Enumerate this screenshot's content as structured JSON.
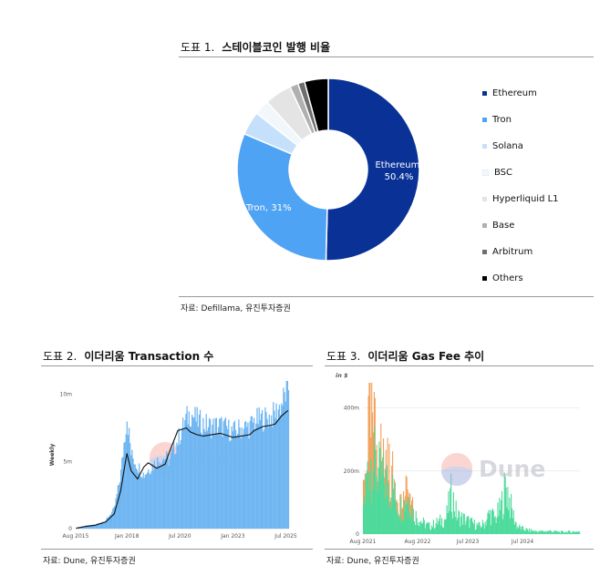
{
  "fig1": {
    "number": "도표 1.",
    "title": "스테이블코인 발행 비율",
    "source": "자료: Defillama, 유진투자증권"
  },
  "fig2": {
    "number": "도표 2.",
    "title": "이더리움 Transaction 수",
    "source": "자료: Dune, 유진투자증권",
    "watermark": "Dune"
  },
  "fig3": {
    "number": "도표 3.",
    "title": "이더리움 Gas Fee 추이",
    "source": "자료: Dune, 유진투자증권",
    "watermark": "Dune"
  },
  "colors": {
    "ethereum": "#0a3296",
    "tron": "#4fa3f5",
    "solana": "#c5e0fa",
    "bsc": "#f2f7fc",
    "hyperliquid": "#e4e4e4",
    "base": "#b0b0b0",
    "arbitrum": "#6e6e6e",
    "others": "#000000",
    "tx_bars": "#6fb6f2",
    "tx_line": "#111111",
    "gas_green": "#4ddb9c",
    "gas_orange": "#f2a25c"
  },
  "chart_data": [
    {
      "type": "pie",
      "donut": true,
      "title": "스테이블코인 발행 비율",
      "slices": [
        {
          "name": "Ethereum",
          "value": 50.4,
          "label": "Ethereum,\n50.4%",
          "color_key": "ethereum"
        },
        {
          "name": "Tron",
          "value": 31,
          "label": "Tron, 31%",
          "color_key": "tron"
        },
        {
          "name": "Solana",
          "value": 4.2,
          "color_key": "solana"
        },
        {
          "name": "BSC",
          "value": 2.7,
          "color_key": "bsc"
        },
        {
          "name": "Hyperliquid L1",
          "value": 4.8,
          "color_key": "hyperliquid"
        },
        {
          "name": "Base",
          "value": 1.5,
          "color_key": "base"
        },
        {
          "name": "Arbitrum",
          "value": 1.2,
          "color_key": "arbitrum"
        },
        {
          "name": "Others",
          "value": 4.2,
          "color_key": "others"
        }
      ],
      "legend_position": "right"
    },
    {
      "type": "bar",
      "title": "이더리움 Transaction 수",
      "ylabel": "Weekly",
      "ytick_labels": [
        "0",
        "5m",
        "10m"
      ],
      "yticks": [
        0,
        5000000,
        10000000
      ],
      "ylim": [
        0,
        11000000
      ],
      "xtick_labels": [
        "Aug 2015",
        "Jan 2018",
        "Jul 2020",
        "Jan 2023",
        "Jul 2025"
      ],
      "xticks": [
        2015.58,
        2018.0,
        2020.5,
        2023.0,
        2025.5
      ],
      "xlim": [
        2015.58,
        2025.65
      ],
      "series": [
        {
          "kind": "bar",
          "x": [
            2015.6,
            2016.0,
            2016.5,
            2017.0,
            2017.4,
            2017.7,
            2017.9,
            2018.0,
            2018.2,
            2018.5,
            2018.8,
            2019.0,
            2019.4,
            2019.8,
            2020.0,
            2020.4,
            2020.8,
            2021.0,
            2021.3,
            2021.6,
            2022.0,
            2022.4,
            2022.8,
            2023.0,
            2023.4,
            2023.8,
            2024.0,
            2024.4,
            2024.8,
            2025.0,
            2025.3,
            2025.6
          ],
          "values": [
            50000,
            200000,
            300000,
            600000,
            1500000,
            4000000,
            7000000,
            8400000,
            5500000,
            4700000,
            4000000,
            4400000,
            5000000,
            5300000,
            5100000,
            6600000,
            8200000,
            8600000,
            8100000,
            7800000,
            7600000,
            7700000,
            7400000,
            7200000,
            7500000,
            7600000,
            8000000,
            8200000,
            8300000,
            8600000,
            9300000,
            10500000
          ]
        },
        {
          "kind": "line",
          "x": [
            2015.6,
            2016.0,
            2016.5,
            2017.0,
            2017.4,
            2017.7,
            2017.9,
            2018.0,
            2018.2,
            2018.5,
            2018.8,
            2019.0,
            2019.4,
            2019.8,
            2020.0,
            2020.4,
            2020.8,
            2021.0,
            2021.3,
            2021.6,
            2022.0,
            2022.4,
            2022.8,
            2023.0,
            2023.4,
            2023.8,
            2024.0,
            2024.4,
            2024.8,
            2025.0,
            2025.3,
            2025.6
          ],
          "values": [
            30000,
            150000,
            250000,
            500000,
            1100000,
            2800000,
            4700000,
            5600000,
            4300000,
            3700000,
            4600000,
            4900000,
            4500000,
            4800000,
            5700000,
            7300000,
            7500000,
            7200000,
            7000000,
            6900000,
            7000000,
            7100000,
            6900000,
            6800000,
            6900000,
            7000000,
            7300000,
            7600000,
            7700000,
            7800000,
            8400000,
            8800000
          ]
        }
      ]
    },
    {
      "type": "area",
      "title": "이더리움 Gas Fee 추이",
      "unit_label": "in $",
      "ytick_labels": [
        "0",
        "200m",
        "400m"
      ],
      "yticks": [
        0,
        200000000,
        400000000
      ],
      "ylim": [
        0,
        480000000
      ],
      "xtick_labels": [
        "Aug 2021",
        "Aug 2022",
        "Jul 2023",
        "Jul 2024"
      ],
      "xticks": [
        2021.58,
        2022.58,
        2023.5,
        2024.5
      ],
      "xlim": [
        2021.58,
        2025.55
      ],
      "series": [
        {
          "kind": "area",
          "x": [
            2021.6,
            2021.7,
            2021.8,
            2021.9,
            2022.0,
            2022.1,
            2022.2,
            2022.3,
            2022.4,
            2022.5,
            2022.6,
            2022.7,
            2022.8,
            2022.9,
            2023.0,
            2023.1,
            2023.2,
            2023.3,
            2023.4,
            2023.5,
            2023.6,
            2023.7,
            2023.8,
            2023.9,
            2024.0,
            2024.1,
            2024.2,
            2024.3,
            2024.4,
            2024.5,
            2024.6,
            2024.8,
            2025.0,
            2025.2,
            2025.5
          ],
          "values": [
            120000000,
            300000000,
            260000000,
            220000000,
            200000000,
            180000000,
            120000000,
            100000000,
            150000000,
            80000000,
            60000000,
            40000000,
            30000000,
            40000000,
            50000000,
            60000000,
            160000000,
            70000000,
            60000000,
            50000000,
            40000000,
            30000000,
            40000000,
            80000000,
            60000000,
            100000000,
            190000000,
            90000000,
            30000000,
            20000000,
            15000000,
            10000000,
            12000000,
            8000000,
            10000000
          ]
        },
        {
          "kind": "area",
          "x": [
            2021.6,
            2021.7,
            2021.8,
            2021.9,
            2022.0,
            2022.1,
            2022.2,
            2022.3,
            2022.4,
            2022.5
          ],
          "values": [
            180000000,
            440000000,
            360000000,
            300000000,
            260000000,
            220000000,
            150000000,
            110000000,
            160000000,
            90000000
          ]
        }
      ]
    }
  ]
}
